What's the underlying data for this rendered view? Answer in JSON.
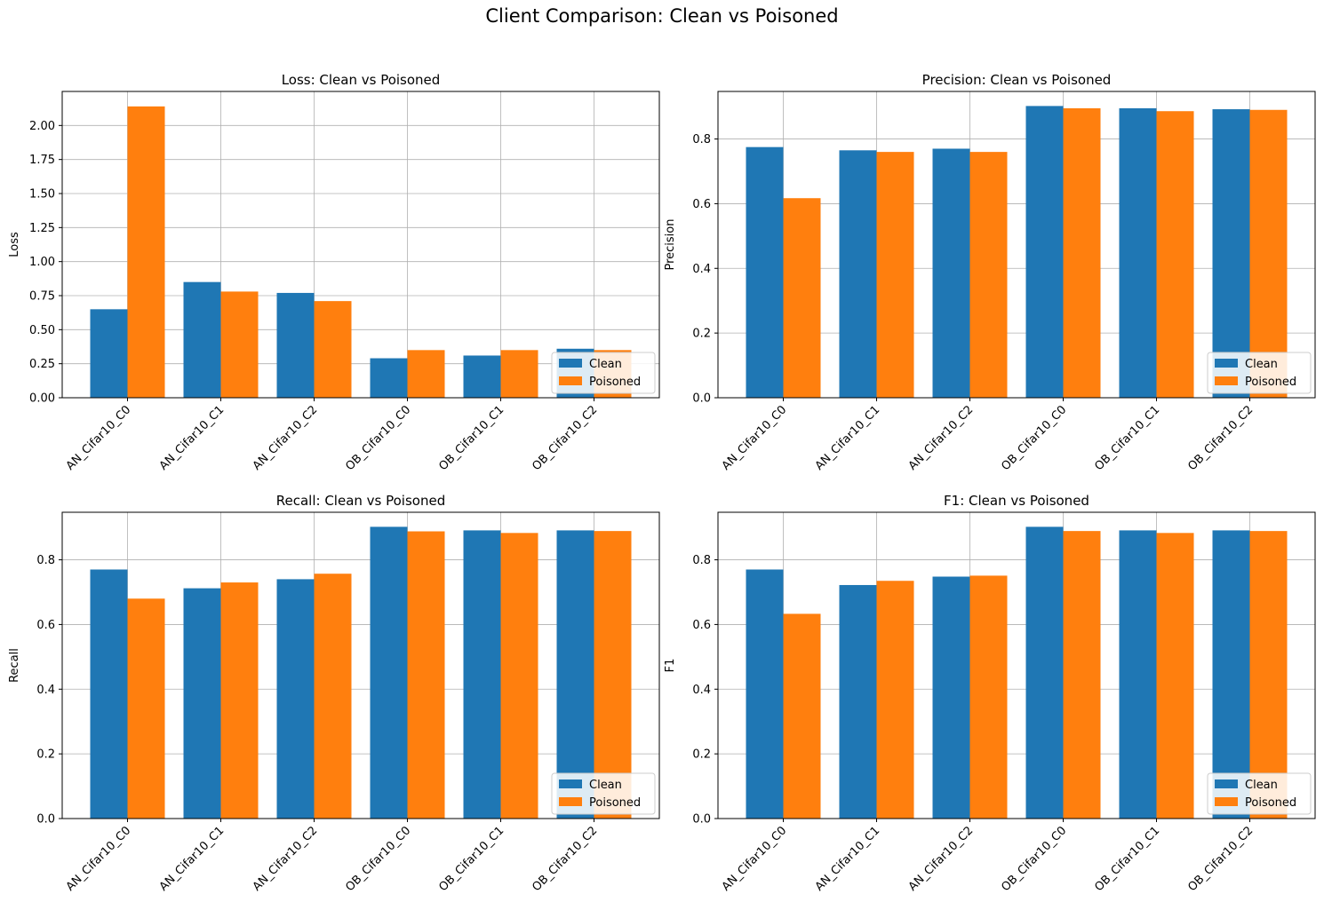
{
  "figure": {
    "title": "Client Comparison: Clean vs Poisoned"
  },
  "colors": {
    "clean": "#1f77b4",
    "poisoned": "#ff7f0e",
    "grid": "#b0b0b0"
  },
  "chart_data": [
    {
      "type": "bar",
      "title": "Loss: Clean vs Poisoned",
      "xlabel": "",
      "ylabel": "Loss",
      "categories": [
        "AN_Cifar10_C0",
        "AN_Cifar10_C1",
        "AN_Cifar10_C2",
        "OB_Cifar10_C0",
        "OB_Cifar10_C1",
        "OB_Cifar10_C2"
      ],
      "series": [
        {
          "name": "Clean",
          "values": [
            0.65,
            0.85,
            0.77,
            0.29,
            0.31,
            0.36
          ]
        },
        {
          "name": "Poisoned",
          "values": [
            2.14,
            0.78,
            0.71,
            0.35,
            0.35,
            0.35
          ]
        }
      ],
      "ylim": [
        0,
        2.25
      ],
      "yticks": [
        "0.00",
        "0.25",
        "0.50",
        "0.75",
        "1.00",
        "1.25",
        "1.50",
        "1.75",
        "2.00"
      ],
      "grid": true,
      "legend": "lower right"
    },
    {
      "type": "bar",
      "title": "Precision: Clean vs Poisoned",
      "xlabel": "",
      "ylabel": "Precision",
      "categories": [
        "AN_Cifar10_C0",
        "AN_Cifar10_C1",
        "AN_Cifar10_C2",
        "OB_Cifar10_C0",
        "OB_Cifar10_C1",
        "OB_Cifar10_C2"
      ],
      "series": [
        {
          "name": "Clean",
          "values": [
            0.775,
            0.765,
            0.77,
            0.902,
            0.895,
            0.892
          ]
        },
        {
          "name": "Poisoned",
          "values": [
            0.617,
            0.76,
            0.76,
            0.895,
            0.886,
            0.89
          ]
        }
      ],
      "ylim": [
        0,
        0.947
      ],
      "yticks": [
        "0.0",
        "0.2",
        "0.4",
        "0.6",
        "0.8"
      ],
      "grid": true,
      "legend": "lower right"
    },
    {
      "type": "bar",
      "title": "Recall: Clean vs Poisoned",
      "xlabel": "",
      "ylabel": "Recall",
      "categories": [
        "AN_Cifar10_C0",
        "AN_Cifar10_C1",
        "AN_Cifar10_C2",
        "OB_Cifar10_C0",
        "OB_Cifar10_C1",
        "OB_Cifar10_C2"
      ],
      "series": [
        {
          "name": "Clean",
          "values": [
            0.77,
            0.712,
            0.74,
            0.902,
            0.891,
            0.891
          ]
        },
        {
          "name": "Poisoned",
          "values": [
            0.68,
            0.73,
            0.757,
            0.888,
            0.883,
            0.889
          ]
        }
      ],
      "ylim": [
        0,
        0.947
      ],
      "yticks": [
        "0.0",
        "0.2",
        "0.4",
        "0.6",
        "0.8"
      ],
      "grid": true,
      "legend": "lower right"
    },
    {
      "type": "bar",
      "title": "F1: Clean vs Poisoned",
      "xlabel": "",
      "ylabel": "F1",
      "categories": [
        "AN_Cifar10_C0",
        "AN_Cifar10_C1",
        "AN_Cifar10_C2",
        "OB_Cifar10_C0",
        "OB_Cifar10_C1",
        "OB_Cifar10_C2"
      ],
      "series": [
        {
          "name": "Clean",
          "values": [
            0.77,
            0.722,
            0.748,
            0.902,
            0.891,
            0.891
          ]
        },
        {
          "name": "Poisoned",
          "values": [
            0.633,
            0.735,
            0.751,
            0.889,
            0.883,
            0.889
          ]
        }
      ],
      "ylim": [
        0,
        0.947
      ],
      "yticks": [
        "0.0",
        "0.2",
        "0.4",
        "0.6",
        "0.8"
      ],
      "grid": true,
      "legend": "lower right"
    }
  ]
}
